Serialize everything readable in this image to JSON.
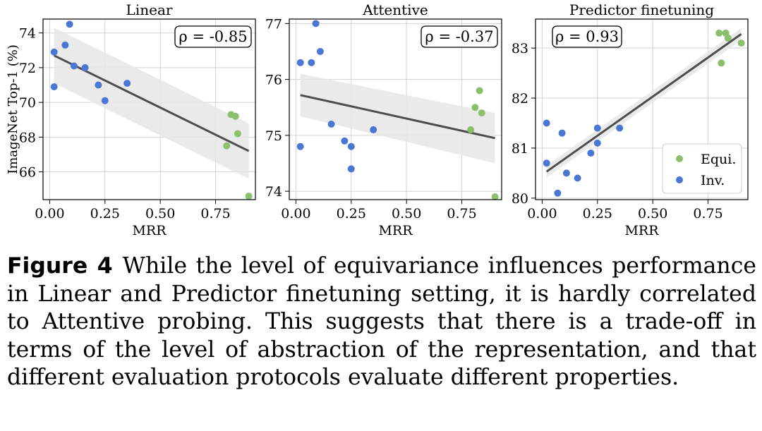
{
  "colors": {
    "equi": "#8cbf6c",
    "inv": "#4a77d4",
    "fit_line": "#4d4d4d",
    "band": "#e6e6e6",
    "grid": "#d3d3d3"
  },
  "chart_data": [
    {
      "type": "scatter",
      "title": "Linear",
      "xlabel": "MRR",
      "ylabel": "ImageNet Top-1 (%)",
      "xlim": [
        -0.03,
        0.93
      ],
      "ylim": [
        64.4,
        74.8
      ],
      "xticks": [
        0.0,
        0.25,
        0.5,
        0.75
      ],
      "xtick_labels": [
        "0.00",
        "0.25",
        "0.50",
        "0.75"
      ],
      "yticks": [
        66,
        68,
        70,
        72,
        74
      ],
      "ytick_labels": [
        "66",
        "68",
        "70",
        "72",
        "74"
      ],
      "grid": true,
      "annotation": "ρ = -0.85",
      "fit": {
        "x": [
          0.02,
          0.9
        ],
        "y": [
          72.7,
          67.2
        ],
        "band_half_width": [
          1.6,
          1.6
        ]
      },
      "series": [
        {
          "key": "inv",
          "x": [
            0.02,
            0.02,
            0.07,
            0.09,
            0.11,
            0.16,
            0.22,
            0.25,
            0.35
          ],
          "y": [
            72.9,
            70.9,
            73.3,
            74.5,
            72.1,
            72.0,
            71.0,
            70.1,
            71.1
          ]
        },
        {
          "key": "equi",
          "x": [
            0.8,
            0.82,
            0.84,
            0.85,
            0.9
          ],
          "y": [
            67.5,
            69.3,
            69.2,
            68.2,
            64.6
          ]
        }
      ]
    },
    {
      "type": "scatter",
      "title": "Attentive",
      "xlabel": "MRR",
      "ylabel": "",
      "xlim": [
        -0.03,
        0.93
      ],
      "ylim": [
        73.85,
        77.08
      ],
      "xticks": [
        0.0,
        0.25,
        0.5,
        0.75
      ],
      "xtick_labels": [
        "0.00",
        "0.25",
        "0.50",
        "0.75"
      ],
      "yticks": [
        74,
        75,
        76,
        77
      ],
      "ytick_labels": [
        "74",
        "75",
        "76",
        "77"
      ],
      "grid": true,
      "annotation": "ρ = -0.37",
      "fit": {
        "x": [
          0.02,
          0.9
        ],
        "y": [
          75.72,
          74.95
        ],
        "band_half_width": [
          0.38,
          0.45
        ]
      },
      "series": [
        {
          "key": "inv",
          "x": [
            0.02,
            0.02,
            0.07,
            0.09,
            0.11,
            0.16,
            0.22,
            0.25,
            0.25,
            0.35
          ],
          "y": [
            76.3,
            74.8,
            76.3,
            77.0,
            76.5,
            75.2,
            74.9,
            74.8,
            74.4,
            75.1
          ]
        },
        {
          "key": "equi",
          "x": [
            0.79,
            0.81,
            0.83,
            0.84,
            0.9
          ],
          "y": [
            75.1,
            75.5,
            75.8,
            75.4,
            73.9
          ]
        }
      ]
    },
    {
      "type": "scatter",
      "title": "Predictor finetuning",
      "xlabel": "MRR",
      "ylabel": "",
      "xlim": [
        -0.03,
        0.93
      ],
      "ylim": [
        79.97,
        83.58
      ],
      "xticks": [
        0.0,
        0.25,
        0.5,
        0.75
      ],
      "xtick_labels": [
        "0.00",
        "0.25",
        "0.50",
        "0.75"
      ],
      "yticks": [
        80,
        81,
        82,
        83
      ],
      "ytick_labels": [
        "80",
        "81",
        "82",
        "83"
      ],
      "grid": true,
      "annotation": "ρ = 0.93",
      "legend": {
        "placement": "lower-right",
        "entries": [
          {
            "key": "equi",
            "label": "Equi."
          },
          {
            "key": "inv",
            "label": "Inv."
          }
        ]
      },
      "fit": {
        "x": [
          0.02,
          0.9
        ],
        "y": [
          80.53,
          83.28
        ],
        "band_half_width": [
          0.12,
          0.12
        ]
      },
      "series": [
        {
          "key": "inv",
          "x": [
            0.02,
            0.02,
            0.07,
            0.09,
            0.11,
            0.16,
            0.22,
            0.25,
            0.25,
            0.35
          ],
          "y": [
            81.5,
            80.7,
            80.1,
            81.3,
            80.5,
            80.4,
            80.9,
            81.4,
            81.1,
            81.4
          ]
        },
        {
          "key": "equi",
          "x": [
            0.8,
            0.81,
            0.83,
            0.84,
            0.9
          ],
          "y": [
            83.3,
            82.7,
            83.3,
            83.2,
            83.1
          ]
        }
      ]
    }
  ],
  "caption": {
    "label": "Figure 4",
    "text": "While the level of equivariance influences performance in Linear and Predictor finetuning setting, it is hardly correlated to Attentive probing. This suggests that there is a trade-off in terms of the level of abstraction of the representation, and that different evaluation protocols evaluate different properties."
  }
}
